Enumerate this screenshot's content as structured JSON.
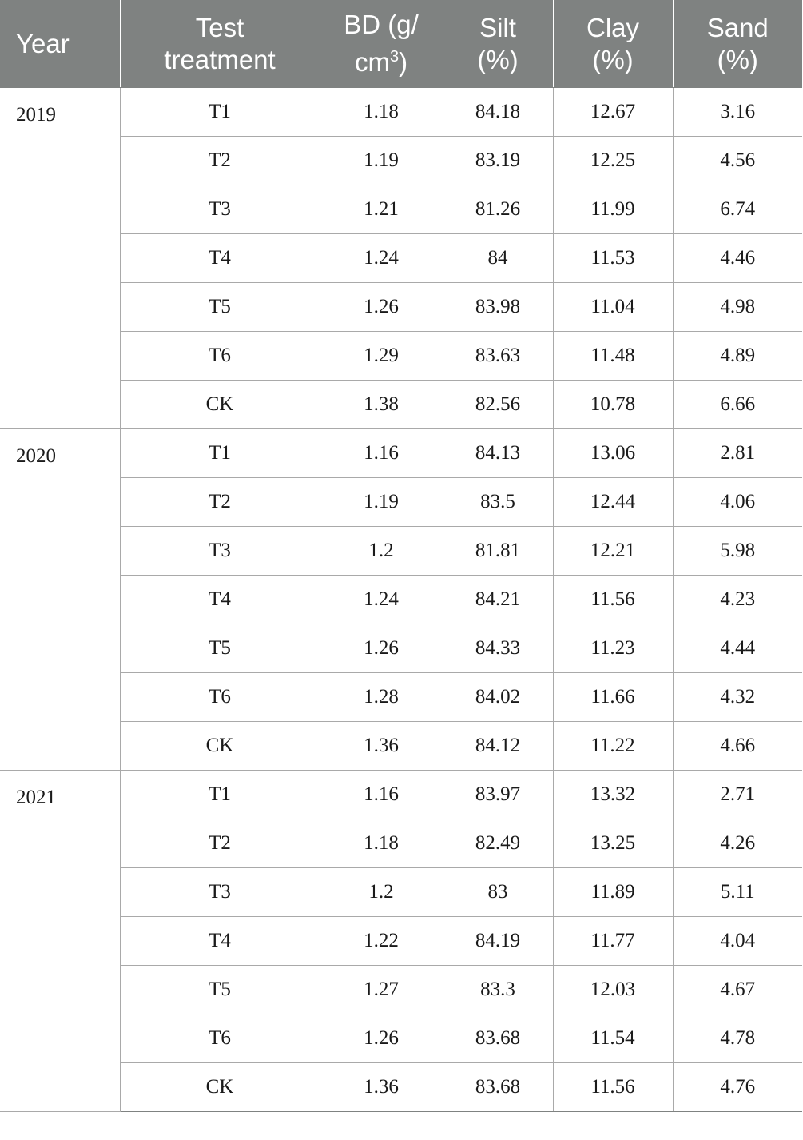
{
  "header": {
    "year": "Year",
    "test_treatment": [
      "Test",
      "treatment"
    ],
    "bd": [
      "BD (g/",
      "cm",
      "3",
      ")"
    ],
    "silt": [
      "Silt",
      "(%)"
    ],
    "clay": [
      "Clay",
      "(%)"
    ],
    "sand": [
      "Sand",
      "(%)"
    ]
  },
  "groups": [
    {
      "year": "2019",
      "rows": [
        {
          "treatment": "T1",
          "bd": "1.18",
          "silt": "84.18",
          "clay": "12.67",
          "sand": "3.16"
        },
        {
          "treatment": "T2",
          "bd": "1.19",
          "silt": "83.19",
          "clay": "12.25",
          "sand": "4.56"
        },
        {
          "treatment": "T3",
          "bd": "1.21",
          "silt": "81.26",
          "clay": "11.99",
          "sand": "6.74"
        },
        {
          "treatment": "T4",
          "bd": "1.24",
          "silt": "84",
          "clay": "11.53",
          "sand": "4.46"
        },
        {
          "treatment": "T5",
          "bd": "1.26",
          "silt": "83.98",
          "clay": "11.04",
          "sand": "4.98"
        },
        {
          "treatment": "T6",
          "bd": "1.29",
          "silt": "83.63",
          "clay": "11.48",
          "sand": "4.89"
        },
        {
          "treatment": "CK",
          "bd": "1.38",
          "silt": "82.56",
          "clay": "10.78",
          "sand": "6.66"
        }
      ]
    },
    {
      "year": "2020",
      "rows": [
        {
          "treatment": "T1",
          "bd": "1.16",
          "silt": "84.13",
          "clay": "13.06",
          "sand": "2.81"
        },
        {
          "treatment": "T2",
          "bd": "1.19",
          "silt": "83.5",
          "clay": "12.44",
          "sand": "4.06"
        },
        {
          "treatment": "T3",
          "bd": "1.2",
          "silt": "81.81",
          "clay": "12.21",
          "sand": "5.98"
        },
        {
          "treatment": "T4",
          "bd": "1.24",
          "silt": "84.21",
          "clay": "11.56",
          "sand": "4.23"
        },
        {
          "treatment": "T5",
          "bd": "1.26",
          "silt": "84.33",
          "clay": "11.23",
          "sand": "4.44"
        },
        {
          "treatment": "T6",
          "bd": "1.28",
          "silt": "84.02",
          "clay": "11.66",
          "sand": "4.32"
        },
        {
          "treatment": "CK",
          "bd": "1.36",
          "silt": "84.12",
          "clay": "11.22",
          "sand": "4.66"
        }
      ]
    },
    {
      "year": "2021",
      "rows": [
        {
          "treatment": "T1",
          "bd": "1.16",
          "silt": "83.97",
          "clay": "13.32",
          "sand": "2.71"
        },
        {
          "treatment": "T2",
          "bd": "1.18",
          "silt": "82.49",
          "clay": "13.25",
          "sand": "4.26"
        },
        {
          "treatment": "T3",
          "bd": "1.2",
          "silt": "83",
          "clay": "11.89",
          "sand": "5.11"
        },
        {
          "treatment": "T4",
          "bd": "1.22",
          "silt": "84.19",
          "clay": "11.77",
          "sand": "4.04"
        },
        {
          "treatment": "T5",
          "bd": "1.27",
          "silt": "83.3",
          "clay": "12.03",
          "sand": "4.67"
        },
        {
          "treatment": "T6",
          "bd": "1.26",
          "silt": "83.68",
          "clay": "11.54",
          "sand": "4.78"
        },
        {
          "treatment": "CK",
          "bd": "1.36",
          "silt": "83.68",
          "clay": "11.56",
          "sand": "4.76"
        }
      ]
    }
  ]
}
